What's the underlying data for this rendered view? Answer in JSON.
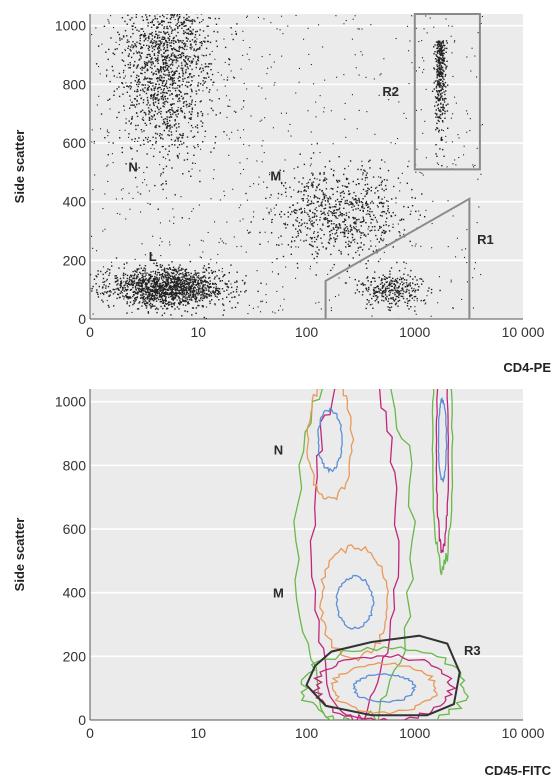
{
  "chart_data": [
    {
      "type": "scatter",
      "xlabel": "CD4-PE",
      "ylabel": "Side scatter",
      "x_scale": "log",
      "xlim": [
        0,
        10000
      ],
      "ylim": [
        0,
        1040
      ],
      "x_ticks": [
        {
          "value": 0,
          "label": "0"
        },
        {
          "value": 10,
          "label": "10"
        },
        {
          "value": 100,
          "label": "100"
        },
        {
          "value": 1000,
          "label": "1000"
        },
        {
          "value": 10000,
          "label": "10 000"
        }
      ],
      "y_ticks": [
        {
          "value": 0,
          "label": "0"
        },
        {
          "value": 200,
          "label": "200"
        },
        {
          "value": 400,
          "label": "400"
        },
        {
          "value": 600,
          "label": "600"
        },
        {
          "value": 800,
          "label": "800"
        },
        {
          "value": 1000,
          "label": "1000"
        }
      ],
      "grid": "horizontal",
      "background": "#ebebeb",
      "point_color": "#222222",
      "populations": [
        {
          "label": "N",
          "x": 5,
          "y": 800,
          "label_x": 2.5,
          "label_y": 520
        },
        {
          "label": "M",
          "x": 200,
          "y": 360,
          "label_x": 52,
          "label_y": 490
        },
        {
          "label": "L",
          "x": 5,
          "y": 110,
          "label_x": 3.8,
          "label_y": 215
        }
      ],
      "gates": [
        {
          "name": "R2",
          "points": [
            [
              1000,
              510
            ],
            [
              4000,
              510
            ],
            [
              4000,
              1040
            ],
            [
              1000,
              1040
            ]
          ],
          "label_x": 600,
          "label_y": 760
        },
        {
          "name": "R1",
          "points": [
            [
              150,
              0
            ],
            [
              150,
              130
            ],
            [
              3200,
              410
            ],
            [
              3200,
              0
            ]
          ],
          "label_x": 4500,
          "label_y": 255
        }
      ]
    },
    {
      "type": "contour",
      "xlabel": "CD45-FITC",
      "ylabel": "Side scatter",
      "x_scale": "log",
      "xlim": [
        0,
        10000
      ],
      "ylim": [
        0,
        1040
      ],
      "x_ticks": [
        {
          "value": 0,
          "label": "0"
        },
        {
          "value": 10,
          "label": "10"
        },
        {
          "value": 100,
          "label": "100"
        },
        {
          "value": 1000,
          "label": "1000"
        },
        {
          "value": 10000,
          "label": "10 000"
        }
      ],
      "y_ticks": [
        {
          "value": 0,
          "label": "0"
        },
        {
          "value": 200,
          "label": "200"
        },
        {
          "value": 400,
          "label": "400"
        },
        {
          "value": 600,
          "label": "600"
        },
        {
          "value": 800,
          "label": "800"
        },
        {
          "value": 1000,
          "label": "1000"
        }
      ],
      "grid": "horizontal",
      "background": "#ebebeb",
      "contour_colors": [
        "#69b84a",
        "#c2267a",
        "#e89a5a",
        "#5b8fd6"
      ],
      "populations": [
        {
          "label": "N",
          "x": 165,
          "y": 880,
          "label_x": 55,
          "label_y": 850
        },
        {
          "label": "M",
          "x": 280,
          "y": 370,
          "label_x": 55,
          "label_y": 400
        },
        {
          "label": "",
          "x": 520,
          "y": 100
        }
      ],
      "gates": [
        {
          "name": "R3",
          "points": [
            [
              120,
              170
            ],
            [
              170,
              215
            ],
            [
              400,
              245
            ],
            [
              1100,
              265
            ],
            [
              2000,
              240
            ],
            [
              2600,
              150
            ],
            [
              2300,
              50
            ],
            [
              1300,
              15
            ],
            [
              400,
              15
            ],
            [
              150,
              45
            ],
            [
              100,
              110
            ]
          ],
          "label_x": 3400,
          "label_y": 205
        }
      ]
    }
  ]
}
